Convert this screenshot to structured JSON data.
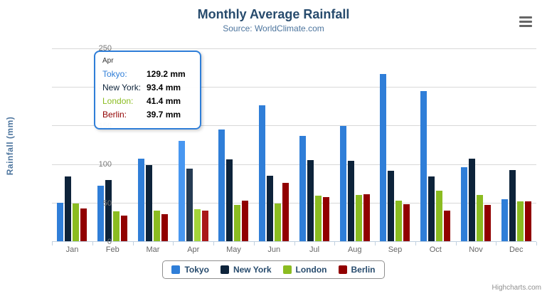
{
  "title": "Monthly Average Rainfall",
  "subtitle": "Source: WorldClimate.com",
  "icons": {
    "export_menu": "hamburger-menu-icon"
  },
  "chart_data": {
    "type": "bar",
    "title": "Monthly Average Rainfall",
    "subtitle": "Source: WorldClimate.com",
    "xlabel": "",
    "ylabel": "Rainfall (mm)",
    "ylim": [
      0,
      250
    ],
    "yticks": [
      0,
      50,
      100,
      150,
      200,
      250
    ],
    "grid": true,
    "legend_position": "bottom",
    "categories": [
      "Jan",
      "Feb",
      "Mar",
      "Apr",
      "May",
      "Jun",
      "Jul",
      "Aug",
      "Sep",
      "Oct",
      "Nov",
      "Dec"
    ],
    "series": [
      {
        "name": "Tokyo",
        "color": "#2f7ed8",
        "hover_color": "#4897f1",
        "values": [
          49.9,
          71.5,
          106.4,
          129.2,
          144.0,
          176.0,
          135.6,
          148.5,
          216.4,
          194.1,
          95.6,
          54.4
        ]
      },
      {
        "name": "New York",
        "color": "#0d233a",
        "hover_color": "#263c53",
        "values": [
          83.6,
          78.8,
          98.5,
          93.4,
          106.0,
          84.5,
          105.0,
          104.3,
          91.2,
          83.5,
          106.6,
          92.3
        ]
      },
      {
        "name": "London",
        "color": "#8bbc21",
        "hover_color": "#a4d53a",
        "values": [
          48.9,
          38.8,
          39.3,
          41.4,
          47.0,
          48.3,
          59.0,
          59.6,
          52.4,
          65.2,
          59.3,
          51.2
        ]
      },
      {
        "name": "Berlin",
        "color": "#910000",
        "hover_color": "#aa1919",
        "values": [
          42.4,
          33.2,
          34.5,
          39.7,
          52.6,
          75.5,
          57.4,
          60.4,
          47.6,
          39.1,
          46.8,
          51.1
        ]
      }
    ],
    "hovered_category": "Apr",
    "hovered_index": 3
  },
  "tooltip": {
    "header": "Apr",
    "border_color": "#2f7ed8",
    "rows": [
      {
        "label": "Tokyo:",
        "value": "129.2 mm",
        "color": "#2f7ed8"
      },
      {
        "label": "New York:",
        "value": "93.4 mm",
        "color": "#0d233a"
      },
      {
        "label": "London:",
        "value": "41.4 mm",
        "color": "#8bbc21"
      },
      {
        "label": "Berlin:",
        "value": "39.7 mm",
        "color": "#910000"
      }
    ]
  },
  "legend": {
    "items": [
      {
        "label": "Tokyo",
        "color": "#2f7ed8"
      },
      {
        "label": "New York",
        "color": "#0d233a"
      },
      {
        "label": "London",
        "color": "#8bbc21"
      },
      {
        "label": "Berlin",
        "color": "#910000"
      }
    ]
  },
  "credits": "Highcharts.com"
}
